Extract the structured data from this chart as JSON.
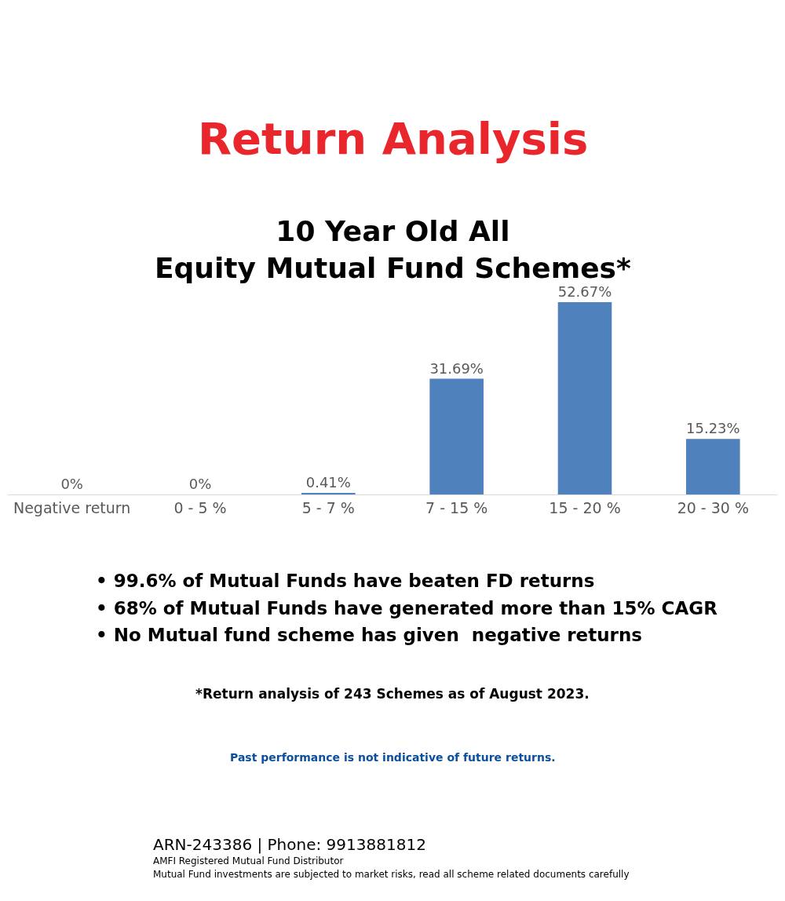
{
  "chart_data": {
    "type": "bar",
    "title": "Return Analysis",
    "subtitle": "10 Year Old All\nEquity Mutual Fund Schemes*",
    "categories": [
      "Negative return",
      "0 - 5 %",
      "5 - 7 %",
      "7 - 15 %",
      "15 - 20 %",
      "20 - 30 %"
    ],
    "values": [
      0,
      0,
      0.41,
      31.69,
      52.67,
      15.23
    ],
    "value_labels": [
      "0%",
      "0%",
      "0.41%",
      "31.69%",
      "52.67%",
      "15.23%"
    ],
    "color": "#4f81bd",
    "annotations": [
      "• 99.6% of Mutual Funds have beaten FD returns",
      "• 68% of Mutual Funds have generated more than 15% CAGR",
      "• No Mutual fund scheme has given  negative returns",
      "*Return analysis of 243 Schemes as of August 2023.",
      "Past performance is not indicative of future returns.",
      "ARN-243386 | Phone: 9913881812",
      "AMFI Registered Mutual Fund Distributor",
      "Mutual Fund investments are subjected to market risks, read all scheme related documents carefully"
    ]
  }
}
